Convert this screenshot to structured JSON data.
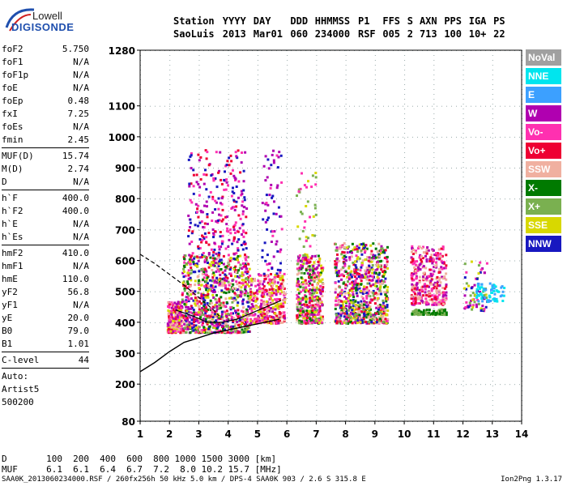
{
  "logo": {
    "line1": "Lowell",
    "line2": "DIGISONDE"
  },
  "header": {
    "labels": [
      "Station",
      "YYYY",
      "DAY",
      "DDD",
      "HHMMSS",
      "P1",
      "FFS",
      "S",
      "AXN",
      "PPS",
      "IGA",
      "PS"
    ],
    "values": [
      "SaoLuis",
      "2013",
      "Mar01",
      "060",
      "234000",
      "RSF",
      "005",
      "2",
      "713",
      "100",
      "10+",
      "22"
    ]
  },
  "params": {
    "group1": [
      {
        "name": "foF2",
        "value": "5.750"
      },
      {
        "name": "foF1",
        "value": "N/A"
      },
      {
        "name": "foF1p",
        "value": "N/A"
      },
      {
        "name": "foE",
        "value": "N/A"
      },
      {
        "name": "foEp",
        "value": "0.48"
      },
      {
        "name": "fxI",
        "value": "7.25"
      },
      {
        "name": "foEs",
        "value": "N/A"
      },
      {
        "name": "fmin",
        "value": "2.45"
      }
    ],
    "group2": [
      {
        "name": "MUF(D)",
        "value": "15.74"
      },
      {
        "name": "M(D)",
        "value": "2.74"
      },
      {
        "name": "D",
        "value": "N/A"
      }
    ],
    "group3": [
      {
        "name": "h`F",
        "value": "400.0"
      },
      {
        "name": "h`F2",
        "value": "400.0"
      },
      {
        "name": "h`E",
        "value": "N/A"
      },
      {
        "name": "h`Es",
        "value": "N/A"
      }
    ],
    "group4": [
      {
        "name": "hmF2",
        "value": "410.0"
      },
      {
        "name": "hmF1",
        "value": "N/A"
      },
      {
        "name": "hmE",
        "value": "110.0"
      },
      {
        "name": "yF2",
        "value": "56.8"
      },
      {
        "name": "yF1",
        "value": "N/A"
      },
      {
        "name": "yE",
        "value": "20.0"
      },
      {
        "name": "B0",
        "value": "79.0"
      },
      {
        "name": "B1",
        "value": "1.01"
      }
    ],
    "group5": [
      {
        "name": "C-level",
        "value": "44"
      }
    ],
    "auto": [
      "Auto:",
      "Artist5",
      "500200"
    ]
  },
  "legend": [
    {
      "label": "NoVal",
      "color": "#a0a0a0"
    },
    {
      "label": "NNE",
      "color": "#00e5ee"
    },
    {
      "label": "E",
      "color": "#3ca0ff"
    },
    {
      "label": "W",
      "color": "#b000b0"
    },
    {
      "label": "Vo-",
      "color": "#ff30b0"
    },
    {
      "label": "Vo+",
      "color": "#ee0033"
    },
    {
      "label": "SSW",
      "color": "#f0b0a0"
    },
    {
      "label": "X-",
      "color": "#007a00"
    },
    {
      "label": "X+",
      "color": "#7ab050"
    },
    {
      "label": "SSE",
      "color": "#d8d800"
    },
    {
      "label": "NNW",
      "color": "#1818c0"
    }
  ],
  "chart_data": {
    "type": "scatter",
    "xlim": [
      1,
      14
    ],
    "ylim": [
      80,
      1280
    ],
    "x_ticks": [
      1,
      2,
      3,
      4,
      5,
      6,
      7,
      8,
      9,
      10,
      11,
      12,
      13,
      14
    ],
    "y_ticks": [
      80,
      200,
      300,
      400,
      500,
      600,
      700,
      800,
      900,
      1000,
      1100,
      1280
    ],
    "clusters": [
      {
        "x": [
          1.9,
          2.4
        ],
        "y": [
          370,
          470
        ],
        "count": 220,
        "colors": [
          "#ee0033",
          "#ff30b0",
          "#b000b0",
          "#d8d800",
          "#f0b0a0"
        ]
      },
      {
        "x": [
          2.4,
          4.7
        ],
        "y": [
          370,
          620
        ],
        "count": 900,
        "colors": [
          "#ee0033",
          "#ff30b0",
          "#b000b0",
          "#d8d800",
          "#f0b0a0",
          "#1818c0",
          "#007a00",
          "#7ab050"
        ]
      },
      {
        "x": [
          2.6,
          4.6
        ],
        "y": [
          620,
          960
        ],
        "count": 260,
        "colors": [
          "#b000b0",
          "#ff30b0",
          "#1818c0",
          "#ee0033"
        ]
      },
      {
        "x": [
          4.7,
          5.9
        ],
        "y": [
          400,
          560
        ],
        "count": 360,
        "colors": [
          "#d8d800",
          "#ee0033",
          "#ff30b0",
          "#b000b0",
          "#f0b0a0"
        ]
      },
      {
        "x": [
          5.1,
          5.8
        ],
        "y": [
          560,
          960
        ],
        "count": 70,
        "colors": [
          "#b000b0",
          "#ff30b0",
          "#1818c0"
        ]
      },
      {
        "x": [
          6.3,
          7.2
        ],
        "y": [
          400,
          620
        ],
        "count": 420,
        "colors": [
          "#ee0033",
          "#ff30b0",
          "#b000b0",
          "#d8d800",
          "#f0b0a0",
          "#007a00",
          "#7ab050"
        ]
      },
      {
        "x": [
          6.3,
          7.0
        ],
        "y": [
          620,
          900
        ],
        "count": 40,
        "colors": [
          "#d8d800",
          "#7ab050",
          "#ff30b0"
        ]
      },
      {
        "x": [
          7.6,
          9.4
        ],
        "y": [
          400,
          660
        ],
        "count": 800,
        "colors": [
          "#ee0033",
          "#ff30b0",
          "#b000b0",
          "#d8d800",
          "#f0b0a0",
          "#007a00",
          "#7ab050",
          "#1818c0"
        ]
      },
      {
        "x": [
          10.2,
          11.4
        ],
        "y": [
          460,
          650
        ],
        "count": 360,
        "colors": [
          "#ff30b0",
          "#b000b0",
          "#ee0033",
          "#f0b0a0"
        ]
      },
      {
        "x": [
          10.2,
          11.4
        ],
        "y": [
          428,
          445
        ],
        "count": 90,
        "colors": [
          "#007a00",
          "#7ab050"
        ]
      },
      {
        "x": [
          12.0,
          12.8
        ],
        "y": [
          440,
          600
        ],
        "count": 70,
        "colors": [
          "#b000b0",
          "#ff30b0",
          "#7ab050",
          "#d8d800",
          "#1818c0"
        ]
      },
      {
        "x": [
          12.4,
          13.4
        ],
        "y": [
          470,
          530
        ],
        "count": 70,
        "colors": [
          "#00e5ee",
          "#3ca0ff"
        ]
      }
    ],
    "profile_curve": {
      "x": [
        1,
        1.5,
        2,
        2.5,
        3,
        3.5,
        4,
        4.5,
        5,
        5.5,
        5.75
      ],
      "y": [
        240,
        270,
        305,
        335,
        350,
        365,
        375,
        385,
        395,
        405,
        410
      ]
    },
    "dashed_curve": {
      "x": [
        1,
        1.5,
        2,
        2.5,
        3,
        3.5,
        3.7
      ],
      "y": [
        620,
        590,
        555,
        520,
        480,
        440,
        420
      ]
    },
    "trace_curve": {
      "x": [
        2.2,
        2.8,
        3.3,
        3.8,
        4.3,
        4.8,
        5.3,
        5.8
      ],
      "y": [
        440,
        420,
        400,
        400,
        410,
        430,
        450,
        470
      ]
    }
  },
  "muf_table": {
    "d_label": "D",
    "d_values": [
      "100",
      "200",
      "400",
      "600",
      "800",
      "1000",
      "1500",
      "3000"
    ],
    "d_unit": "[km]",
    "muf_label": "MUF",
    "muf_values": [
      "6.1",
      "6.1",
      "6.4",
      "6.7",
      "7.2",
      "8.0",
      "10.2",
      "15.7"
    ],
    "muf_unit": "[MHz]"
  },
  "footer": {
    "left": "SAA0K_2013060234000.RSF / 260fx256h 50 kHz 5.0 km / DPS-4 SAA0K 903 / 2.6 S 315.8 E",
    "right": "Ion2Png 1.3.17"
  }
}
